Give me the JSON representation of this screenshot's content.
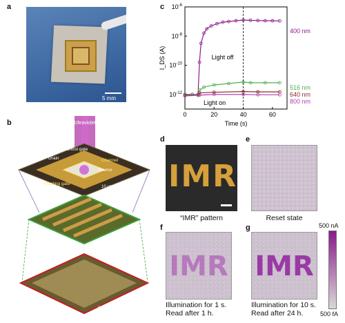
{
  "panels": {
    "a": {
      "label": "a",
      "scale_bar": "5 mm"
    },
    "b": {
      "label": "b",
      "ultraviolet": "Ultraviolet",
      "control_gate": "Control gate",
      "channel": "Channel",
      "drain": "Drain",
      "source": "Source",
      "floating_gate": "Floating gate",
      "scale_top": "10 μm",
      "scale_mid": "40 μm",
      "scale_bot": "500 μm"
    },
    "c": {
      "label": "c"
    },
    "d": {
      "label": "d",
      "pattern_text": "IMR",
      "caption": "“IMR” pattern"
    },
    "e": {
      "label": "e",
      "caption": "Reset state"
    },
    "f": {
      "label": "f",
      "pattern_text": "IMR",
      "caption_line1": "Illumination for 1 s.",
      "caption_line2": "Read after 1 h."
    },
    "g": {
      "label": "g",
      "pattern_text": "IMR",
      "caption_line1": "Illumination for 10 s.",
      "caption_line2": "Read after 24 h."
    },
    "colorbar": {
      "max_label": "500 nA",
      "min_label": "500 fA",
      "color_high": "#8a1a8a",
      "color_low": "#d8d8d8"
    }
  },
  "chart_data": {
    "type": "line",
    "xlabel": "Time (s)",
    "ylabel": "I_DS (A)",
    "xlim": [
      0,
      70
    ],
    "ylim_log10": [
      -13,
      -6
    ],
    "xticks": [
      0,
      20,
      40,
      60
    ],
    "yticks_exp": [
      -12,
      -10,
      -8,
      -6
    ],
    "ytick_labels": [
      "10",
      "10",
      "10",
      "10"
    ],
    "ytick_exponents": [
      "-12",
      "-10",
      "-8",
      "-6"
    ],
    "annotations": {
      "light_on": "Light on",
      "light_off": "Light off"
    },
    "light_off_time": 40,
    "series": [
      {
        "name": "400 nm",
        "color": "#8b1a8b",
        "points": [
          [
            0,
            -12
          ],
          [
            5,
            -12
          ],
          [
            9,
            -12
          ],
          [
            10,
            -9.8
          ],
          [
            11,
            -8.5
          ],
          [
            13,
            -7.8
          ],
          [
            15,
            -7.5
          ],
          [
            18,
            -7.3
          ],
          [
            22,
            -7.15
          ],
          [
            26,
            -7.05
          ],
          [
            30,
            -7.0
          ],
          [
            35,
            -6.95
          ],
          [
            40,
            -6.9
          ],
          [
            45,
            -6.92
          ],
          [
            50,
            -6.93
          ],
          [
            55,
            -6.95
          ],
          [
            60,
            -6.95
          ],
          [
            65,
            -6.96
          ]
        ]
      },
      {
        "name": "516 nm",
        "color": "#4caf50",
        "points": [
          [
            0,
            -12
          ],
          [
            9,
            -12
          ],
          [
            10,
            -11.7
          ],
          [
            13,
            -11.5
          ],
          [
            20,
            -11.35
          ],
          [
            30,
            -11.25
          ],
          [
            40,
            -11.15
          ],
          [
            45,
            -11.2
          ],
          [
            55,
            -11.2
          ],
          [
            65,
            -11.2
          ]
        ]
      },
      {
        "name": "640 nm",
        "color": "#8a2a2a",
        "points": [
          [
            0,
            -12.05
          ],
          [
            9,
            -12.05
          ],
          [
            10,
            -11.9
          ],
          [
            20,
            -11.85
          ],
          [
            40,
            -11.8
          ],
          [
            50,
            -11.82
          ],
          [
            65,
            -11.82
          ]
        ]
      },
      {
        "name": "800 nm",
        "color": "#b040b0",
        "points": [
          [
            0,
            -12.1
          ],
          [
            10,
            -12.05
          ],
          [
            20,
            -12.0
          ],
          [
            40,
            -12.0
          ],
          [
            50,
            -12.02
          ],
          [
            65,
            -12.02
          ]
        ]
      }
    ]
  }
}
